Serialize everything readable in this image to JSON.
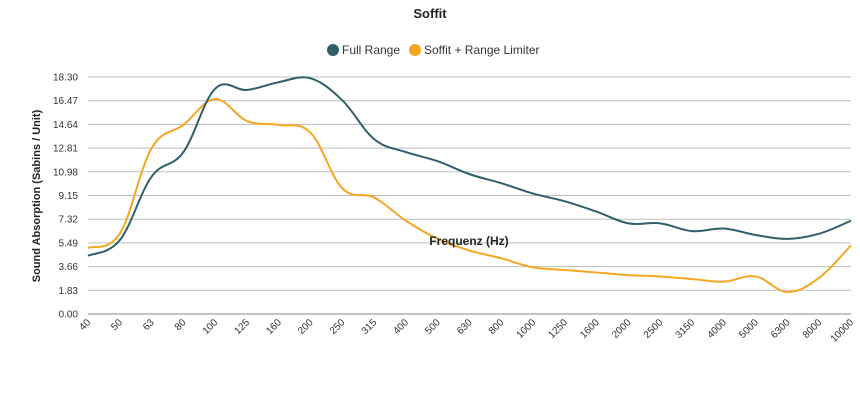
{
  "chart_data": {
    "type": "line",
    "title": "Soffit",
    "xlabel": "Frequenz (Hz)",
    "ylabel": "Sound Absorption (Sabins / Unit)",
    "ylim": [
      0,
      18.3
    ],
    "yticks": [
      "0.00",
      "1.83",
      "3.66",
      "5.49",
      "7.32",
      "9.15",
      "10.98",
      "12.81",
      "14.64",
      "16.47",
      "18.30"
    ],
    "categories": [
      "40",
      "50",
      "63",
      "80",
      "100",
      "125",
      "160",
      "200",
      "250",
      "315",
      "400",
      "500",
      "630",
      "800",
      "1000",
      "1250",
      "1600",
      "2000",
      "2500",
      "3150",
      "4000",
      "5000",
      "6300",
      "8000",
      "10000"
    ],
    "series": [
      {
        "name": "Full Range",
        "color": "#2e5f6b",
        "values": [
          4.5,
          5.7,
          10.6,
          12.5,
          17.4,
          17.3,
          17.9,
          18.2,
          16.5,
          13.5,
          12.5,
          11.8,
          10.8,
          10.1,
          9.3,
          8.7,
          7.9,
          7.0,
          7.0,
          6.4,
          6.6,
          6.1,
          5.8,
          6.2,
          7.2
        ]
      },
      {
        "name": "Soffit + Range Limiter",
        "color": "#f5a623",
        "values": [
          5.1,
          6.2,
          12.8,
          14.6,
          16.6,
          14.9,
          14.6,
          14.0,
          9.7,
          9.0,
          7.2,
          5.8,
          4.9,
          4.3,
          3.6,
          3.4,
          3.2,
          3.0,
          2.9,
          2.7,
          2.5,
          2.9,
          1.7,
          2.8,
          5.3
        ]
      }
    ],
    "legend": "top-center",
    "grid": true
  }
}
